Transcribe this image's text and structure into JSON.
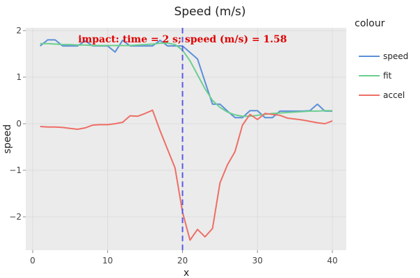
{
  "chart_data": {
    "type": "line",
    "title": "Speed (m/s)",
    "xlabel": "x",
    "ylabel": "speed",
    "xlim": [
      -1,
      42
    ],
    "ylim": [
      -2.72,
      2.05
    ],
    "x_ticks": [
      0,
      10,
      20,
      30,
      40
    ],
    "y_ticks": [
      2,
      1,
      0,
      -1,
      -2
    ],
    "grid": true,
    "legend": {
      "title": "colour",
      "position": "right",
      "entries": [
        "speed",
        "fit",
        "accel"
      ]
    },
    "x": [
      1,
      2,
      3,
      4,
      5,
      6,
      7,
      8,
      9,
      10,
      11,
      12,
      13,
      14,
      15,
      16,
      17,
      18,
      19,
      20,
      21,
      22,
      23,
      24,
      25,
      26,
      27,
      28,
      29,
      30,
      31,
      32,
      33,
      34,
      35,
      36,
      37,
      38,
      39,
      40
    ],
    "series": [
      {
        "name": "speed",
        "color": "#5b8fd9",
        "values": [
          1.67,
          1.8,
          1.8,
          1.67,
          1.67,
          1.67,
          1.78,
          1.67,
          1.67,
          1.67,
          1.54,
          1.79,
          1.67,
          1.67,
          1.67,
          1.67,
          1.79,
          1.67,
          1.67,
          1.67,
          1.53,
          1.39,
          0.9,
          0.42,
          0.42,
          0.27,
          0.13,
          0.13,
          0.28,
          0.28,
          0.13,
          0.13,
          0.27,
          0.27,
          0.27,
          0.27,
          0.28,
          0.42,
          0.27,
          0.27
        ]
      },
      {
        "name": "fit",
        "color": "#6ccf8e",
        "values": [
          1.72,
          1.72,
          1.71,
          1.7,
          1.7,
          1.69,
          1.69,
          1.68,
          1.68,
          1.68,
          1.68,
          1.68,
          1.68,
          1.69,
          1.7,
          1.71,
          1.73,
          1.73,
          1.7,
          1.58,
          1.35,
          1.05,
          0.75,
          0.5,
          0.35,
          0.25,
          0.19,
          0.16,
          0.16,
          0.18,
          0.2,
          0.22,
          0.23,
          0.24,
          0.25,
          0.26,
          0.27,
          0.27,
          0.28,
          0.28
        ]
      },
      {
        "name": "accel",
        "color": "#ee6e66",
        "values": [
          -0.06,
          -0.07,
          -0.07,
          -0.08,
          -0.1,
          -0.12,
          -0.09,
          -0.03,
          -0.02,
          -0.02,
          0.0,
          0.03,
          0.17,
          0.16,
          0.22,
          0.29,
          -0.15,
          -0.55,
          -0.95,
          -1.9,
          -2.5,
          -2.27,
          -2.43,
          -2.25,
          -1.27,
          -0.88,
          -0.6,
          -0.03,
          0.2,
          0.09,
          0.22,
          0.2,
          0.18,
          0.12,
          0.1,
          0.08,
          0.05,
          0.02,
          0.0,
          0.06
        ]
      }
    ],
    "annotations": [
      {
        "type": "vline",
        "x": 20,
        "color": "#5a5ae6",
        "style": "dashed"
      },
      {
        "type": "text",
        "text": "impact: time = 2 s; speed (m/s) = 1.58",
        "color": "#e00000",
        "x": 20,
        "y": 1.8
      }
    ]
  }
}
